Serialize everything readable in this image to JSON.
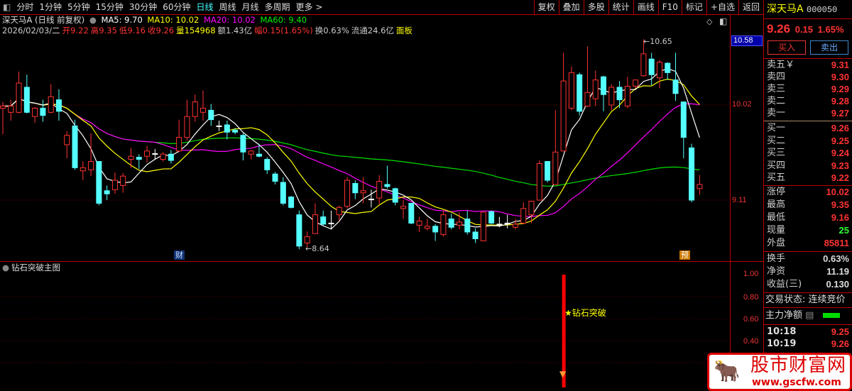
{
  "toolbar": {
    "tabs": [
      "分时",
      "1分钟",
      "5分钟",
      "15分钟",
      "30分钟",
      "60分钟",
      "日线",
      "周线",
      "月线",
      "多周期",
      "更多 >"
    ],
    "active": "日线",
    "right": [
      "复权",
      "叠加",
      "多股",
      "统计",
      "画线",
      "F10",
      "标记",
      "+自选",
      "返回"
    ]
  },
  "info": {
    "title": "深天马A (日线 前复权)",
    "ma5": "MA5: 9.70",
    "ma10": "MA10: 10.02",
    "ma20": "MA20: 10.02",
    "ma60": "MA60: 9.40",
    "date": "2026/02/03/二",
    "open": "开9.22",
    "high": "高9.35",
    "low": "低9.16",
    "close": "收9.26",
    "vol": "量154968",
    "amt": "额1.43亿",
    "chg": "幅0.15(1.65%)",
    "turn": "换0.63%",
    "float": "流通24.6亿",
    "board": "面板"
  },
  "axis": {
    "price": [
      "10.58",
      "10.02",
      "9.11"
    ],
    "ind": [
      "1.00",
      "0.80",
      "0.60",
      "0.40"
    ]
  },
  "chart_data": {
    "type": "candlestick",
    "ylim": [
      8.58,
      10.7
    ],
    "grid_lines": [
      10.02,
      9.11
    ],
    "colors": {
      "up": "#ff3232",
      "down": "#54ffff",
      "ma5": "#ffffff",
      "ma10": "#ffff00",
      "ma20": "#ff00ff",
      "ma60": "#00e000"
    },
    "ohlc": [
      [
        9.99,
        10.05,
        9.74,
        10.01
      ],
      [
        9.95,
        10.07,
        9.87,
        10.01
      ],
      [
        9.95,
        10.34,
        9.94,
        10.23
      ],
      [
        10.19,
        10.31,
        9.94,
        9.95
      ],
      [
        9.91,
        10.0,
        9.85,
        9.99
      ],
      [
        9.99,
        10.07,
        9.86,
        9.92
      ],
      [
        9.95,
        10.22,
        9.94,
        10.1
      ],
      [
        10.07,
        10.17,
        9.87,
        9.96
      ],
      [
        9.64,
        9.77,
        9.51,
        9.73
      ],
      [
        9.82,
        9.88,
        9.4,
        9.42
      ],
      [
        9.39,
        9.48,
        9.3,
        9.42
      ],
      [
        9.4,
        9.75,
        9.34,
        9.48
      ],
      [
        9.48,
        9.48,
        9.06,
        9.08
      ],
      [
        9.2,
        9.25,
        9.11,
        9.17
      ],
      [
        9.21,
        9.375,
        9.17,
        9.3
      ],
      [
        9.25,
        9.37,
        9.18,
        9.34
      ],
      [
        9.5,
        9.61,
        9.42,
        9.53
      ],
      [
        9.52,
        9.55,
        9.41,
        9.5
      ],
      [
        9.53,
        9.63,
        9.47,
        9.58
      ],
      [
        9.55,
        9.6,
        9.5,
        9.555
      ],
      [
        9.5,
        9.57,
        9.48,
        9.55
      ],
      [
        9.55,
        9.59,
        9.46,
        9.49
      ],
      [
        9.58,
        9.88,
        9.57,
        9.71
      ],
      [
        9.71,
        10.07,
        9.68,
        9.91
      ],
      [
        9.91,
        10.12,
        9.86,
        10.05
      ],
      [
        9.95,
        10.16,
        9.87,
        9.99
      ],
      [
        9.97,
        10.03,
        9.82,
        9.88
      ],
      [
        9.82,
        9.87,
        9.77,
        9.82
      ],
      [
        9.83,
        9.87,
        9.69,
        9.76
      ],
      [
        9.78,
        9.8,
        9.74,
        9.76
      ],
      [
        9.73,
        9.75,
        9.49,
        9.57
      ],
      [
        9.55,
        9.59,
        9.5,
        9.58
      ],
      [
        9.55,
        9.65,
        9.52,
        9.53
      ],
      [
        9.5,
        9.52,
        9.36,
        9.4
      ],
      [
        9.36,
        9.38,
        9.26,
        9.29
      ],
      [
        9.28,
        9.33,
        9.06,
        9.08
      ],
      [
        9.14,
        9.15,
        9.03,
        9.04
      ],
      [
        8.97,
        9.01,
        8.64,
        8.67
      ],
      [
        8.7,
        8.81,
        8.66,
        8.76
      ],
      [
        8.79,
        9.08,
        8.79,
        8.97
      ],
      [
        8.95,
        9.01,
        8.87,
        8.88
      ],
      [
        8.89,
        9.01,
        8.83,
        8.89
      ],
      [
        8.97,
        9.06,
        8.91,
        9.04
      ],
      [
        9.05,
        9.33,
        9.03,
        9.3
      ],
      [
        9.27,
        9.3,
        9.12,
        9.18
      ],
      [
        9.18,
        9.33,
        9.08,
        9.2
      ],
      [
        9.12,
        9.21,
        9.04,
        9.12
      ],
      [
        9.13,
        9.35,
        9.07,
        9.29
      ],
      [
        9.26,
        9.44,
        9.22,
        9.24
      ],
      [
        9.22,
        9.23,
        9.06,
        9.09
      ],
      [
        9.03,
        9.11,
        8.93,
        9.05
      ],
      [
        9.08,
        9.08,
        8.88,
        8.89
      ],
      [
        8.87,
        8.95,
        8.805,
        8.91
      ],
      [
        8.84,
        8.93,
        8.82,
        8.86
      ],
      [
        8.86,
        8.88,
        8.72,
        8.805
      ],
      [
        8.78,
        9.01,
        8.76,
        8.97
      ],
      [
        8.93,
        8.98,
        8.83,
        8.85
      ],
      [
        8.87,
        8.99,
        8.83,
        8.9
      ],
      [
        8.93,
        9.01,
        8.78,
        8.805
      ],
      [
        8.805,
        8.84,
        8.7,
        8.74
      ],
      [
        8.72,
        9.0,
        8.72,
        8.995
      ],
      [
        9.0,
        9.01,
        8.88,
        8.89
      ],
      [
        8.88,
        8.95,
        8.85,
        8.88
      ],
      [
        8.89,
        8.97,
        8.84,
        8.89
      ],
      [
        8.85,
        8.93,
        8.83,
        8.88
      ],
      [
        8.89,
        9.09,
        8.88,
        9.03
      ],
      [
        8.97,
        9.1,
        8.89,
        9.1
      ],
      [
        9.11,
        9.49,
        9.11,
        9.46
      ],
      [
        9.48,
        9.48,
        9.28,
        9.3
      ],
      [
        9.26,
        9.97,
        9.26,
        9.57
      ],
      [
        9.58,
        10.52,
        9.58,
        10.25
      ],
      [
        9.99,
        10.39,
        9.97,
        10.33
      ],
      [
        10.31,
        10.33,
        9.92,
        9.96
      ],
      [
        10.01,
        10.58,
        10.0,
        10.14
      ],
      [
        10.08,
        10.35,
        10.01,
        10.26
      ],
      [
        10.29,
        10.3,
        9.96,
        10.12
      ],
      [
        10.02,
        10.22,
        9.97,
        10.19
      ],
      [
        10.19,
        10.25,
        9.99,
        10.07
      ],
      [
        10.01,
        10.29,
        9.99,
        10.2
      ],
      [
        10.2,
        10.26,
        10.18,
        10.26
      ],
      [
        10.3,
        10.65,
        10.29,
        10.51
      ],
      [
        10.46,
        10.52,
        10.21,
        10.31
      ],
      [
        10.28,
        10.45,
        10.18,
        10.43
      ],
      [
        10.42,
        10.43,
        10.26,
        10.33
      ],
      [
        10.26,
        10.52,
        10.06,
        10.13
      ],
      [
        10.05,
        10.05,
        9.51,
        9.71
      ],
      [
        9.61,
        9.65,
        9.09,
        9.11
      ],
      [
        9.22,
        9.35,
        9.16,
        9.26
      ]
    ],
    "annotations": {
      "max": "10.65",
      "min": "8.64",
      "badge_cai": "财",
      "badge_yu": "预"
    },
    "indicator": {
      "title": "钻石突破主图",
      "ylim": [
        0,
        1.0
      ],
      "signal_index": 70,
      "signal_value": 1.0,
      "signal_label": "★钻石突破",
      "color": "#ff0000"
    }
  },
  "panel": {
    "name": "深天马A",
    "code": "000050",
    "price": "9.26",
    "chg": "0.15",
    "pct": "1.65%",
    "buy": "买入",
    "sell": "卖出",
    "asks": [
      {
        "k": "卖五￥",
        "v": "9.31"
      },
      {
        "k": "卖四",
        "v": "9.30"
      },
      {
        "k": "卖三",
        "v": "9.29"
      },
      {
        "k": "卖二",
        "v": "9.28"
      },
      {
        "k": "卖一",
        "v": "9.27"
      }
    ],
    "bids": [
      {
        "k": "买一",
        "v": "9.26"
      },
      {
        "k": "买二",
        "v": "9.25"
      },
      {
        "k": "买三",
        "v": "9.24"
      },
      {
        "k": "买四",
        "v": "9.23"
      },
      {
        "k": "买五",
        "v": "9.22"
      }
    ],
    "stats": [
      {
        "k": "涨停",
        "v": "10.02",
        "c": "#f33"
      },
      {
        "k": "最高",
        "v": "9.35",
        "c": "#f33"
      },
      {
        "k": "最低",
        "v": "9.16",
        "c": "#f33"
      },
      {
        "k": "现量",
        "v": "25",
        "c": "#3f3"
      },
      {
        "k": "外盘",
        "v": "85811",
        "c": "#f33"
      }
    ],
    "stats2": [
      {
        "k": "换手",
        "v": "0.63%"
      },
      {
        "k": "净资",
        "v": "11.19"
      },
      {
        "k": "收益(三)",
        "v": "0.130"
      }
    ],
    "status": "交易状态: 连续竞价",
    "main": "主力净额",
    "ticks": [
      {
        "t": "10:18",
        "v": "9.25"
      },
      {
        "t": "10:19",
        "v": "9.26"
      }
    ]
  },
  "watermark": {
    "name": "股市财富网",
    "url": "www.gscfw.com"
  }
}
